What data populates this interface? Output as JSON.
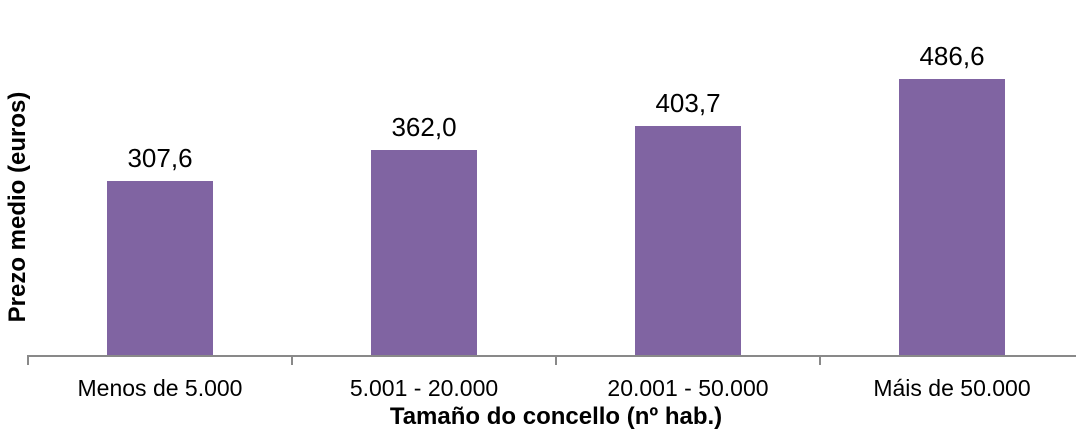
{
  "chart_data": {
    "type": "bar",
    "title": "",
    "categories": [
      "Menos de 5.000",
      "5.001 - 20.000",
      "20.001 - 50.000",
      "Máis de 50.000"
    ],
    "values": [
      307.6,
      362.0,
      403.7,
      486.6
    ],
    "value_labels": [
      "307,6",
      "362,0",
      "403,7",
      "486,6"
    ],
    "xlabel": "Tamaño do concello (nº hab.)",
    "ylabel": "Prezo medio (euros)",
    "ylim": [
      0,
      600
    ],
    "grid": false,
    "legend": false,
    "bar_color": "#8064A2",
    "axis_color": "#898989",
    "label_color": "#000000",
    "background": "#FFFFFF"
  }
}
